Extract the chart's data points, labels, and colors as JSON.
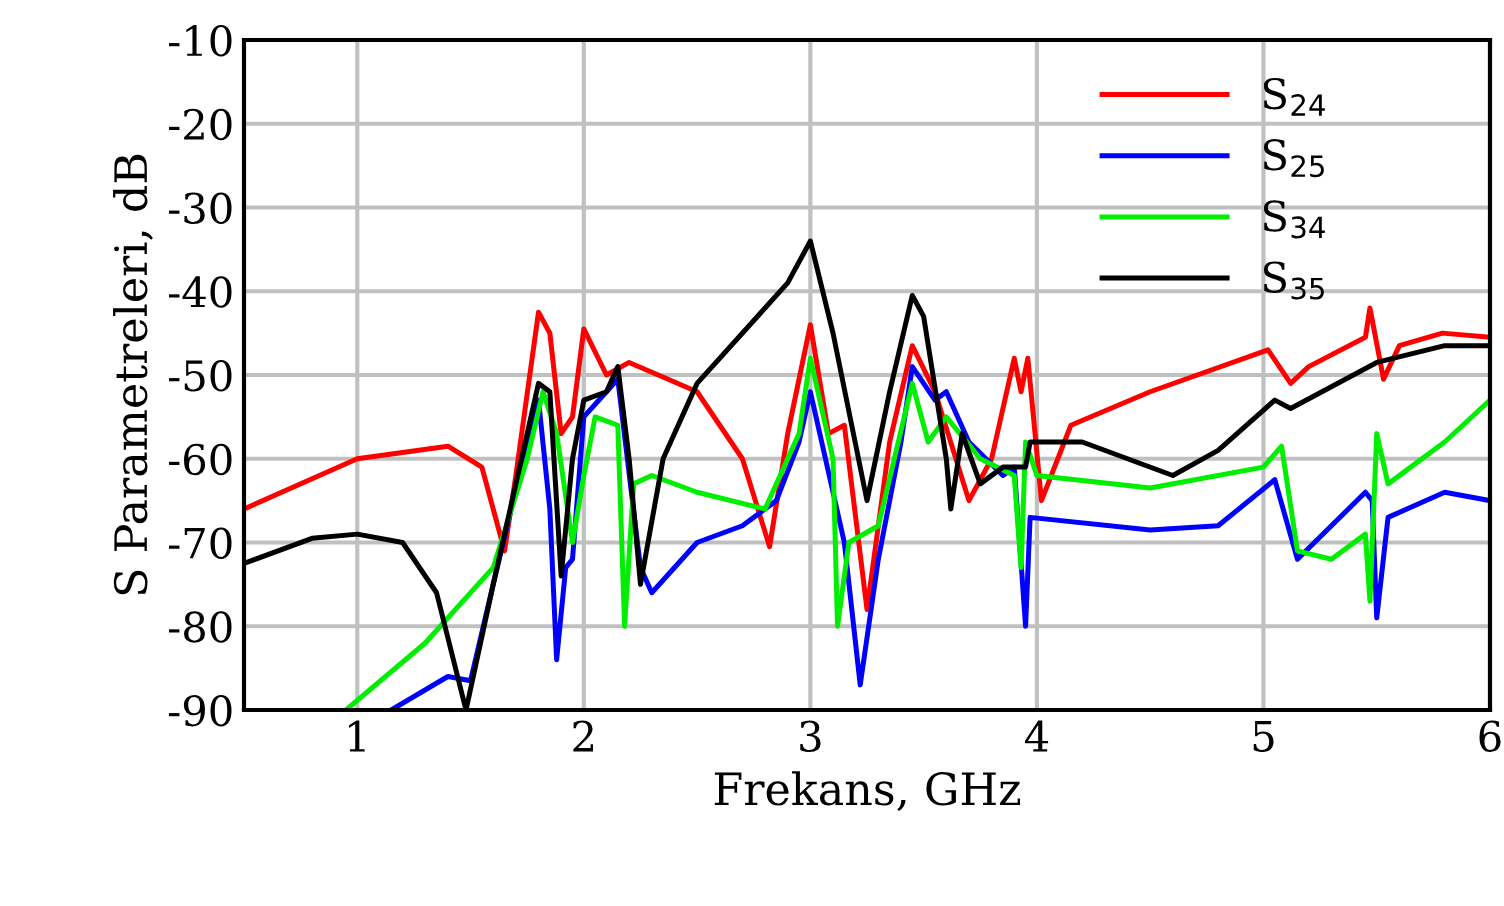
{
  "chart_data": {
    "type": "line",
    "xlabel": "Frekans, GHz",
    "ylabel": "S Parametreleri, dB",
    "xlim": [
      0.5,
      6
    ],
    "xticks": [
      1,
      2,
      3,
      4,
      5,
      6
    ],
    "ylim": [
      -90,
      -10
    ],
    "yticks": [
      -90,
      -80,
      -70,
      -60,
      -50,
      -40,
      -30,
      -20,
      -10
    ],
    "grid": true,
    "legend": "top right",
    "line_style": "solid",
    "marker": "none",
    "series": [
      {
        "name": "S$_{24}$",
        "color": "#ff0000",
        "x": [
          0.5,
          1.0,
          1.4,
          1.55,
          1.65,
          1.7,
          1.8,
          1.85,
          1.9,
          1.95,
          2.0,
          2.1,
          2.2,
          2.5,
          2.7,
          2.82,
          2.9,
          3.0,
          3.08,
          3.15,
          3.25,
          3.35,
          3.45,
          3.55,
          3.7,
          3.8,
          3.9,
          3.93,
          3.96,
          4.02,
          4.15,
          4.5,
          5.02,
          5.12,
          5.2,
          5.45,
          5.47,
          5.53,
          5.6,
          5.79,
          6.0
        ],
        "values": [
          -66,
          -60,
          -58.5,
          -61,
          -71,
          -62,
          -42.5,
          -45,
          -57,
          -55,
          -44.5,
          -50,
          -48.5,
          -52,
          -60,
          -70.5,
          -57,
          -44,
          -57,
          -56,
          -78,
          -58,
          -46.5,
          -52,
          -65,
          -60,
          -48,
          -52,
          -48,
          -65,
          -56,
          -52,
          -47,
          -51,
          -49,
          -45.5,
          -42,
          -50.5,
          -46.5,
          -45,
          -45.5
        ]
      },
      {
        "name": "S$_{25}$",
        "color": "#0000ff",
        "x": [
          1.15,
          1.4,
          1.5,
          1.6,
          1.75,
          1.8,
          1.85,
          1.88,
          1.92,
          1.95,
          2.0,
          2.1,
          2.15,
          2.25,
          2.3,
          2.5,
          2.7,
          2.85,
          2.95,
          3.0,
          3.1,
          3.15,
          3.22,
          3.3,
          3.4,
          3.45,
          3.55,
          3.6,
          3.7,
          3.85,
          3.9,
          3.95,
          3.97,
          4.5,
          4.8,
          5.05,
          5.15,
          5.45,
          5.48,
          5.5,
          5.55,
          5.8,
          6.0
        ],
        "values": [
          -90,
          -86,
          -86.5,
          -75,
          -58,
          -53,
          -66,
          -84,
          -73,
          -72,
          -55,
          -52,
          -50.5,
          -73,
          -76,
          -70,
          -68,
          -65,
          -58,
          -52,
          -64,
          -70,
          -87,
          -72,
          -58,
          -49,
          -53,
          -52,
          -58,
          -62,
          -61,
          -80,
          -67,
          -68.5,
          -68,
          -62.5,
          -72,
          -64,
          -65,
          -79,
          -67,
          -64,
          -65
        ]
      },
      {
        "name": "S$_{34}$",
        "color": "#00ee00",
        "x": [
          0.95,
          1.3,
          1.6,
          1.75,
          1.82,
          1.88,
          1.95,
          2.0,
          2.05,
          2.15,
          2.18,
          2.22,
          2.3,
          2.5,
          2.8,
          2.95,
          3.0,
          3.1,
          3.12,
          3.17,
          3.3,
          3.45,
          3.52,
          3.6,
          3.75,
          3.9,
          3.93,
          3.95,
          4.0,
          4.5,
          5.0,
          5.08,
          5.15,
          5.3,
          5.45,
          5.47,
          5.5,
          5.55,
          5.8,
          6.0
        ],
        "values": [
          -90,
          -82,
          -73,
          -60,
          -52,
          -57,
          -70,
          -62,
          -55,
          -56,
          -80,
          -63,
          -62,
          -64,
          -66,
          -57,
          -48,
          -60,
          -80,
          -70,
          -68,
          -51,
          -58,
          -55,
          -60,
          -62,
          -73,
          -58,
          -62,
          -63.5,
          -61,
          -58.5,
          -71,
          -72,
          -69,
          -77,
          -57,
          -63,
          -58,
          -53
        ]
      },
      {
        "name": "S$_{35}$",
        "color": "#000000",
        "x": [
          0.5,
          0.8,
          1.0,
          1.2,
          1.35,
          1.48,
          1.6,
          1.7,
          1.8,
          1.85,
          1.9,
          1.95,
          2.0,
          2.1,
          2.15,
          2.2,
          2.25,
          2.35,
          2.5,
          2.8,
          2.9,
          3.0,
          3.1,
          3.25,
          3.35,
          3.45,
          3.5,
          3.6,
          3.62,
          3.67,
          3.75,
          3.85,
          3.95,
          3.97,
          4.2,
          4.6,
          4.8,
          5.05,
          5.12,
          5.5,
          5.8,
          6.0
        ],
        "values": [
          -72.5,
          -69.5,
          -69,
          -70,
          -76,
          -90,
          -75,
          -63,
          -51,
          -52,
          -74,
          -60,
          -53,
          -52,
          -49,
          -60,
          -75,
          -60,
          -51,
          -42,
          -39,
          -34,
          -45,
          -65,
          -52,
          -40.5,
          -43,
          -60,
          -66,
          -57,
          -63,
          -61,
          -61,
          -58,
          -58,
          -62,
          -59,
          -53,
          -54,
          -48.5,
          -46.5,
          -46.5
        ]
      }
    ]
  }
}
